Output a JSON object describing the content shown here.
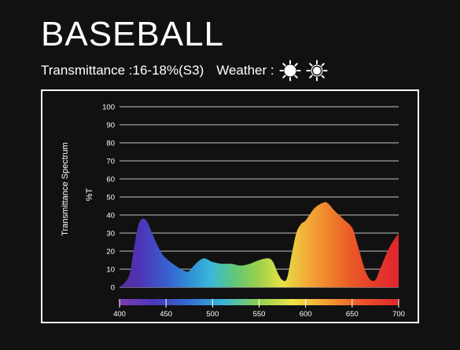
{
  "header": {
    "title": "BASEBALL",
    "transmittance_label": "Transmittance :16-18%(S3)",
    "weather_label": "Weather :",
    "weather_icons": [
      "sun-full-icon",
      "sun-partial-icon"
    ]
  },
  "colors": {
    "background": "#111111",
    "text": "#ffffff",
    "gridline": "#ffffff"
  },
  "chart_data": {
    "type": "area",
    "ylabel_outer": "Transmittance Spectrum",
    "ylabel_inner": "%T",
    "xlim": [
      400,
      700
    ],
    "ylim": [
      0,
      100
    ],
    "y_ticks": [
      0,
      10,
      20,
      30,
      40,
      50,
      60,
      70,
      80,
      90,
      100
    ],
    "x_ticks": [
      400,
      450,
      500,
      550,
      600,
      650,
      700
    ],
    "grid": true,
    "series": [
      {
        "x": [
          400,
          410,
          415,
          420,
          425,
          430,
          435,
          440,
          445,
          450,
          460,
          470,
          475,
          480,
          490,
          500,
          510,
          520,
          530,
          540,
          550,
          560,
          565,
          570,
          575,
          580,
          585,
          590,
          595,
          600,
          610,
          620,
          625,
          630,
          640,
          650,
          655,
          660,
          665,
          670,
          675,
          680,
          690,
          700
        ],
        "y": [
          0,
          6,
          20,
          34,
          38,
          36,
          30,
          24,
          19,
          16,
          12,
          9,
          9,
          12,
          16,
          14,
          13,
          13,
          12,
          13,
          15,
          16,
          14,
          8,
          4,
          5,
          18,
          30,
          35,
          37,
          44,
          47,
          46,
          43,
          38,
          33,
          25,
          16,
          8,
          4,
          4,
          10,
          22,
          30
        ]
      }
    ]
  }
}
